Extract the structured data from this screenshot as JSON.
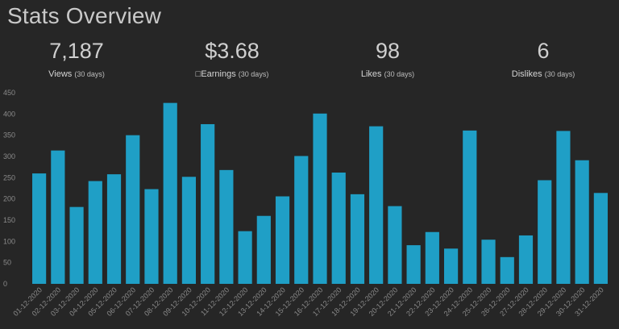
{
  "header": {
    "title": "Stats Overview"
  },
  "stats": [
    {
      "value": "7,187",
      "label": "Views",
      "period": "(30 days)"
    },
    {
      "value": "$3.68",
      "label": "□Earnings",
      "period": "(30 days)"
    },
    {
      "value": "98",
      "label": "Likes",
      "period": "(30 days)"
    },
    {
      "value": "6",
      "label": "Dislikes",
      "period": "(30 days)"
    }
  ],
  "chart_data": {
    "type": "bar",
    "categories": [
      "01-12-2020",
      "02-12-2020",
      "03-12-2020",
      "04-12-2020",
      "05-12-2020",
      "06-12-2020",
      "07-12-2020",
      "08-12-2020",
      "09-12-2020",
      "10-12-2020",
      "11-12-2020",
      "12-12-2020",
      "13-12-2020",
      "14-12-2020",
      "15-12-2020",
      "16-12-2020",
      "17-12-2020",
      "18-12-2020",
      "19-12-2020",
      "20-12-2020",
      "21-12-2020",
      "22-12-2020",
      "23-12-2020",
      "24-12-2020",
      "25-12-2020",
      "26-12-2020",
      "27-12-2020",
      "28-12-2020",
      "29-12-2020",
      "30-12-2020",
      "31-12-2020"
    ],
    "values": [
      260,
      314,
      181,
      242,
      258,
      350,
      223,
      426,
      252,
      376,
      268,
      124,
      160,
      206,
      301,
      401,
      262,
      211,
      371,
      183,
      91,
      122,
      83,
      361,
      104,
      63,
      114,
      244,
      360,
      291,
      214
    ],
    "ylim": [
      0,
      450
    ],
    "yticks": [
      0,
      50,
      100,
      150,
      200,
      250,
      300,
      350,
      400,
      450
    ],
    "bar_color": "#1f9fc6",
    "grid": false
  }
}
